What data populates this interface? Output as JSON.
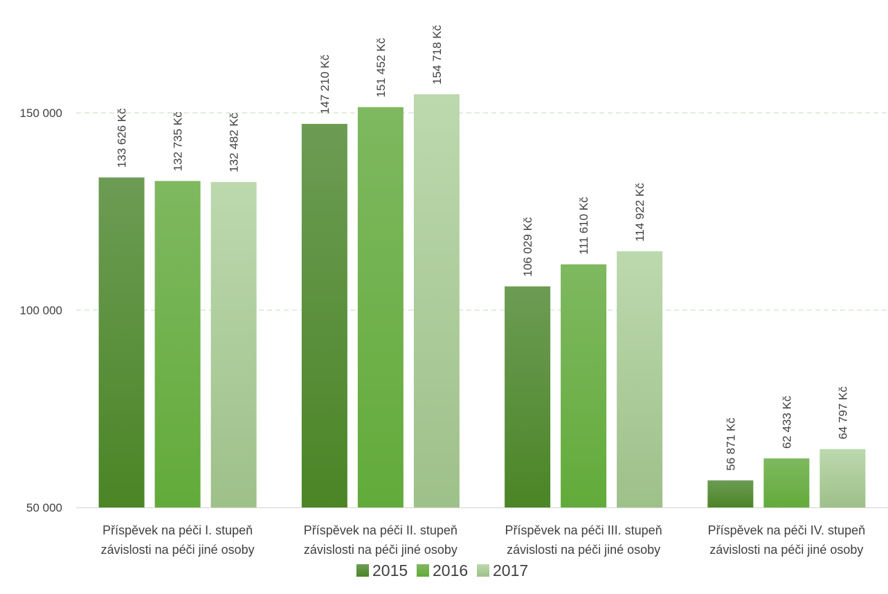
{
  "chart_data": {
    "type": "bar",
    "title": "",
    "xlabel": "",
    "ylabel": "",
    "ylim": [
      50000,
      160000
    ],
    "yticks": [
      50000,
      100000,
      150000
    ],
    "ytick_labels": [
      "50 000",
      "100 000",
      "150 000"
    ],
    "grid": "horizontal-dashed",
    "legend_position": "bottom",
    "categories": [
      [
        "Příspěvek na péči I. stupeň",
        "závislosti na péči jiné osoby"
      ],
      [
        "Příspěvek na péči II. stupeň",
        "závislosti na péči jiné osoby"
      ],
      [
        "Příspěvek na péči III. stupeň",
        "závislosti na péči jiné osoby"
      ],
      [
        "Příspěvek na péči IV. stupeň",
        "závislosti na péči jiné osoby"
      ]
    ],
    "series": [
      {
        "name": "2015",
        "color": "#4e8a2c",
        "values": [
          133626,
          147210,
          106029,
          56871
        ],
        "labels": [
          "133 626 Kč",
          "147 210 Kč",
          "106 029 Kč",
          "56 871 Kč"
        ]
      },
      {
        "name": "2016",
        "color": "#6ab344",
        "values": [
          132735,
          151452,
          111610,
          62433
        ],
        "labels": [
          "132 735 Kč",
          "151 452 Kč",
          "111 610 Kč",
          "62 433 Kč"
        ]
      },
      {
        "name": "2017",
        "color": "#a9cf95",
        "values": [
          132482,
          154718,
          114922,
          64797
        ],
        "labels": [
          "132 482 Kč",
          "154 718 Kč",
          "114 922 Kč",
          "64 797 Kč"
        ]
      }
    ]
  }
}
